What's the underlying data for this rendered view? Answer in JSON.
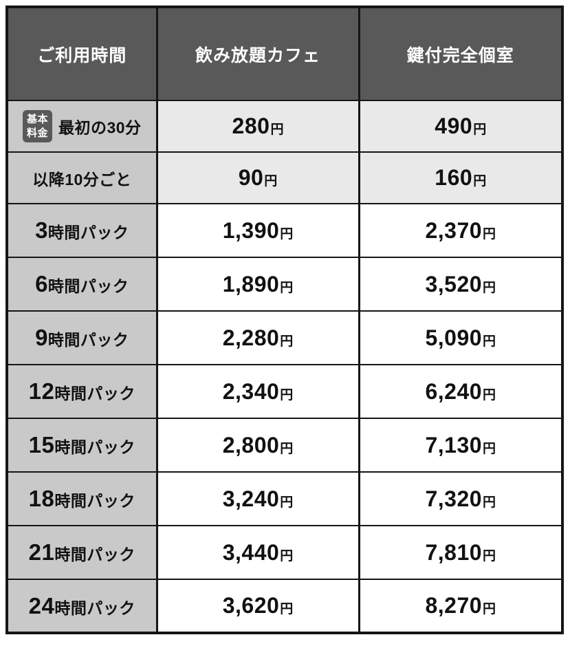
{
  "colors": {
    "header_bg": "#595959",
    "label_column_bg": "#c9c9c9",
    "base_row_value_bg": "#e9e9e9",
    "pack_row_value_bg": "#ffffff",
    "border": "#151515",
    "header_text": "#ffffff",
    "body_text": "#111111"
  },
  "badge": {
    "line1": "基本",
    "line2": "料金"
  },
  "yen_suffix": "円",
  "chart_data": {
    "type": "table",
    "columns": [
      "ご利用時間",
      "飲み放題カフェ",
      "鍵付完全個室"
    ],
    "rows": [
      {
        "time_num": "",
        "time_label": "最初の30分",
        "cafe": "280",
        "room": "490",
        "note": "基本料金"
      },
      {
        "time_num": "",
        "time_label": "以降10分ごと",
        "cafe": "90",
        "room": "160",
        "note": "基本料金"
      },
      {
        "time_num": "3",
        "time_label": "時間パック",
        "cafe": "1,390",
        "room": "2,370"
      },
      {
        "time_num": "6",
        "time_label": "時間パック",
        "cafe": "1,890",
        "room": "3,520"
      },
      {
        "time_num": "9",
        "time_label": "時間パック",
        "cafe": "2,280",
        "room": "5,090"
      },
      {
        "time_num": "12",
        "time_label": "時間パック",
        "cafe": "2,340",
        "room": "6,240"
      },
      {
        "time_num": "15",
        "time_label": "時間パック",
        "cafe": "2,800",
        "room": "7,130"
      },
      {
        "time_num": "18",
        "time_label": "時間パック",
        "cafe": "3,240",
        "room": "7,320"
      },
      {
        "time_num": "21",
        "time_label": "時間パック",
        "cafe": "3,440",
        "room": "7,810"
      },
      {
        "time_num": "24",
        "time_label": "時間パック",
        "cafe": "3,620",
        "room": "8,270"
      }
    ]
  }
}
